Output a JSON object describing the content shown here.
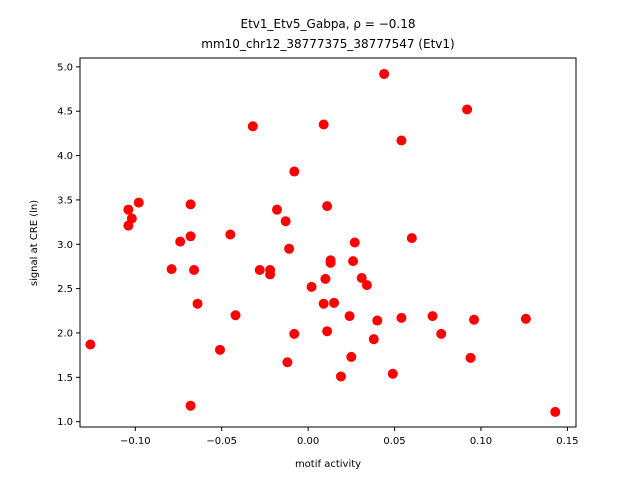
{
  "chart_data": {
    "type": "scatter",
    "title_line1": "Etv1_Etv5_Gabpa, ρ = −0.18",
    "title_line2": "mm10_chr12_38777375_38777547 (Etv1)",
    "xlabel": "motif activity",
    "ylabel": "signal at CRE (ln)",
    "xlim": [
      -0.132,
      0.155
    ],
    "ylim": [
      0.94,
      5.1
    ],
    "xticks": [
      -0.1,
      -0.05,
      0.0,
      0.05,
      0.1,
      0.15
    ],
    "xtick_labels": [
      "−0.10",
      "−0.05",
      "0.00",
      "0.05",
      "0.10",
      "0.15"
    ],
    "yticks": [
      1.0,
      1.5,
      2.0,
      2.5,
      3.0,
      3.5,
      4.0,
      4.5,
      5.0
    ],
    "ytick_labels": [
      "1.0",
      "1.5",
      "2.0",
      "2.5",
      "3.0",
      "3.5",
      "4.0",
      "4.5",
      "5.0"
    ],
    "grid": false,
    "marker_color": "#ff0000",
    "points": [
      {
        "x": -0.126,
        "y": 1.87
      },
      {
        "x": -0.104,
        "y": 3.39
      },
      {
        "x": -0.104,
        "y": 3.21
      },
      {
        "x": -0.102,
        "y": 3.29
      },
      {
        "x": -0.098,
        "y": 3.47
      },
      {
        "x": -0.079,
        "y": 2.72
      },
      {
        "x": -0.074,
        "y": 3.03
      },
      {
        "x": -0.068,
        "y": 3.45
      },
      {
        "x": -0.068,
        "y": 3.09
      },
      {
        "x": -0.068,
        "y": 1.18
      },
      {
        "x": -0.066,
        "y": 2.71
      },
      {
        "x": -0.064,
        "y": 2.33
      },
      {
        "x": -0.051,
        "y": 1.81
      },
      {
        "x": -0.045,
        "y": 3.11
      },
      {
        "x": -0.042,
        "y": 2.2
      },
      {
        "x": -0.032,
        "y": 4.33
      },
      {
        "x": -0.028,
        "y": 2.71
      },
      {
        "x": -0.022,
        "y": 2.71
      },
      {
        "x": -0.022,
        "y": 2.66
      },
      {
        "x": -0.018,
        "y": 3.39
      },
      {
        "x": -0.013,
        "y": 3.26
      },
      {
        "x": -0.012,
        "y": 1.67
      },
      {
        "x": -0.011,
        "y": 2.95
      },
      {
        "x": -0.008,
        "y": 3.82
      },
      {
        "x": -0.008,
        "y": 1.99
      },
      {
        "x": 0.002,
        "y": 2.52
      },
      {
        "x": 0.009,
        "y": 4.35
      },
      {
        "x": 0.009,
        "y": 2.33
      },
      {
        "x": 0.01,
        "y": 2.61
      },
      {
        "x": 0.011,
        "y": 3.43
      },
      {
        "x": 0.011,
        "y": 2.02
      },
      {
        "x": 0.013,
        "y": 2.82
      },
      {
        "x": 0.013,
        "y": 2.79
      },
      {
        "x": 0.015,
        "y": 2.34
      },
      {
        "x": 0.019,
        "y": 1.51
      },
      {
        "x": 0.024,
        "y": 2.19
      },
      {
        "x": 0.025,
        "y": 1.73
      },
      {
        "x": 0.026,
        "y": 2.81
      },
      {
        "x": 0.027,
        "y": 3.02
      },
      {
        "x": 0.031,
        "y": 2.62
      },
      {
        "x": 0.034,
        "y": 2.54
      },
      {
        "x": 0.038,
        "y": 1.93
      },
      {
        "x": 0.04,
        "y": 2.14
      },
      {
        "x": 0.044,
        "y": 4.92
      },
      {
        "x": 0.049,
        "y": 1.54
      },
      {
        "x": 0.054,
        "y": 4.17
      },
      {
        "x": 0.054,
        "y": 2.17
      },
      {
        "x": 0.06,
        "y": 3.07
      },
      {
        "x": 0.072,
        "y": 2.19
      },
      {
        "x": 0.077,
        "y": 1.99
      },
      {
        "x": 0.092,
        "y": 4.52
      },
      {
        "x": 0.094,
        "y": 1.72
      },
      {
        "x": 0.096,
        "y": 2.15
      },
      {
        "x": 0.126,
        "y": 2.16
      },
      {
        "x": 0.143,
        "y": 1.11
      }
    ]
  }
}
